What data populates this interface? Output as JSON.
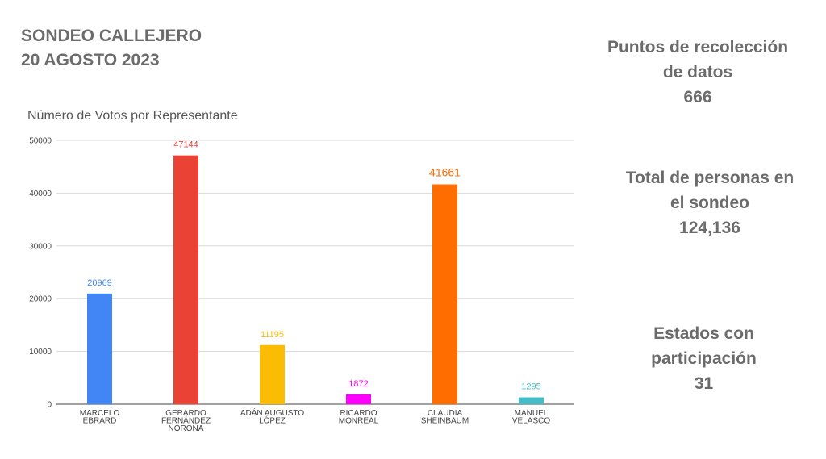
{
  "header": {
    "line1": "SONDEO CALLEJERO",
    "line2": "20 AGOSTO 2023"
  },
  "stats": [
    {
      "label_lines": [
        "Puntos de recolección",
        "de datos"
      ],
      "value": "666"
    },
    {
      "label_lines": [
        "Total de personas en",
        "el sondeo"
      ],
      "value": "124,136"
    },
    {
      "label_lines": [
        "Estados con",
        "participación"
      ],
      "value": "31"
    }
  ],
  "chart_data": {
    "type": "bar",
    "title": "Número de Votos por Representante",
    "xlabel": "",
    "ylabel": "",
    "ylim": [
      0,
      50000
    ],
    "yticks": [
      "0",
      "10000",
      "20000",
      "30000",
      "40000",
      "50000"
    ],
    "grid": true,
    "legend": "none",
    "categories": [
      [
        "MARCELO",
        "EBRARD"
      ],
      [
        "GERARDO",
        "FERNÁNDEZ",
        "NOROÑA"
      ],
      [
        "ADÁN AUGUSTO",
        "LÓPEZ"
      ],
      [
        "RICARDO",
        "MONREAL"
      ],
      [
        "CLAUDIA",
        "SHEINBAUM"
      ],
      [
        "MANUEL",
        "VELASCO"
      ]
    ],
    "values": [
      20969,
      47144,
      11195,
      1872,
      41661,
      1295
    ],
    "data_labels": [
      "20969",
      "47144",
      "11195",
      "1872",
      "41661",
      "1295"
    ],
    "colors": [
      "#4285f4",
      "#ea4335",
      "#fbbc04",
      "#ff00ff",
      "#ff6d01",
      "#46bdc6"
    ]
  }
}
